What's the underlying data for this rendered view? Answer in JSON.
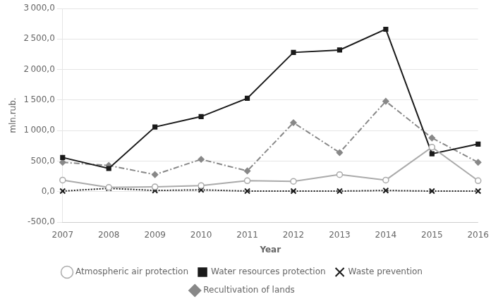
{
  "chart_data": {
    "type": "line",
    "categories": [
      "2007",
      "2008",
      "2009",
      "2010",
      "2011",
      "2012",
      "2013",
      "2014",
      "2015",
      "2016"
    ],
    "series": [
      {
        "name": "Atmospheric air protection",
        "color": "#aaaaaa",
        "marker": "circle",
        "line_style": "solid",
        "values": [
          190,
          70,
          80,
          100,
          180,
          170,
          280,
          190,
          730,
          180
        ]
      },
      {
        "name": "Water resources protection",
        "color": "#1a1a1a",
        "marker": "square",
        "line_style": "solid",
        "values": [
          560,
          380,
          1060,
          1230,
          1530,
          2280,
          2320,
          2660,
          620,
          780
        ]
      },
      {
        "name": "Waste prevention",
        "color": "#1a1a1a",
        "marker": "cross",
        "line_style": "dotted",
        "values": [
          10,
          55,
          20,
          30,
          10,
          10,
          10,
          20,
          10,
          10
        ]
      },
      {
        "name": "Recultivation of lands",
        "color": "#888888",
        "marker": "diamond",
        "line_style": "dashdot",
        "values": [
          480,
          430,
          280,
          530,
          340,
          1130,
          640,
          1480,
          880,
          480
        ]
      }
    ],
    "x_label": "Year",
    "y_label": "mln.rub.",
    "ylim": [
      -500,
      3000
    ],
    "yticks": [
      {
        "value": -500,
        "label": "-500,0"
      },
      {
        "value": 0,
        "label": "0,0"
      },
      {
        "value": 500,
        "label": "500,0"
      },
      {
        "value": 1000,
        "label": "1 000,0"
      },
      {
        "value": 1500,
        "label": "1 500,0"
      },
      {
        "value": 2000,
        "label": "2 000,0"
      },
      {
        "value": 2500,
        "label": "2 500,0"
      },
      {
        "value": 3000,
        "label": "3 000,0"
      }
    ],
    "grid": "y",
    "legend": "bottom"
  }
}
